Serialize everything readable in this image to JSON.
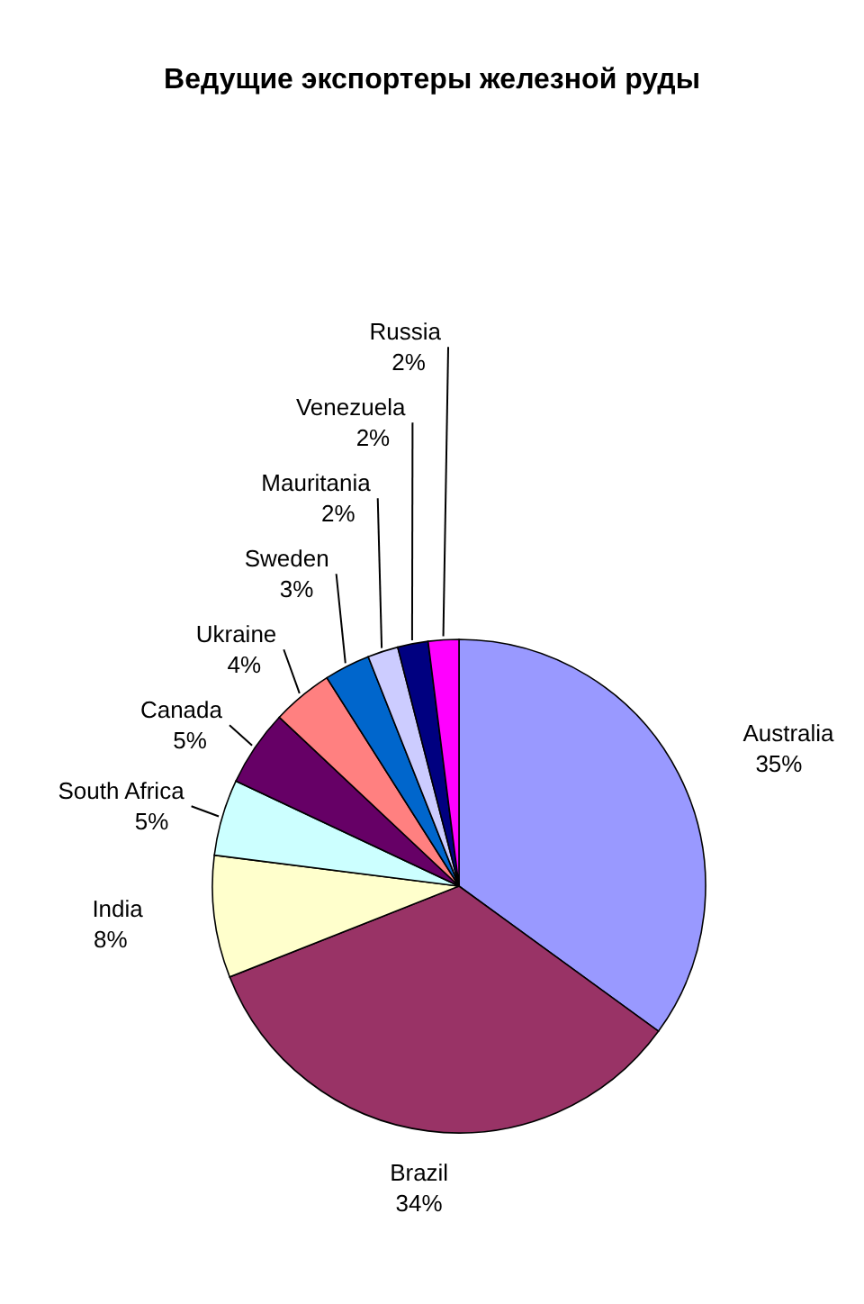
{
  "chart_data": {
    "type": "pie",
    "title": "Ведущие экспортеры железной руды",
    "categories": [
      "Australia",
      "Brazil",
      "India",
      "South Africa",
      "Canada",
      "Ukraine",
      "Sweden",
      "Mauritania",
      "Venezuela",
      "Russia"
    ],
    "values": [
      35,
      34,
      8,
      5,
      5,
      4,
      3,
      2,
      2,
      2
    ],
    "colors": [
      "#9999ff",
      "#993366",
      "#ffffcc",
      "#ccffff",
      "#660066",
      "#ff8080",
      "#0066cc",
      "#ccccff",
      "#000080",
      "#ff00ff"
    ],
    "value_labels": [
      "35%",
      "34%",
      "8%",
      "5%",
      "5%",
      "4%",
      "3%",
      "2%",
      "2%",
      "2%"
    ]
  }
}
